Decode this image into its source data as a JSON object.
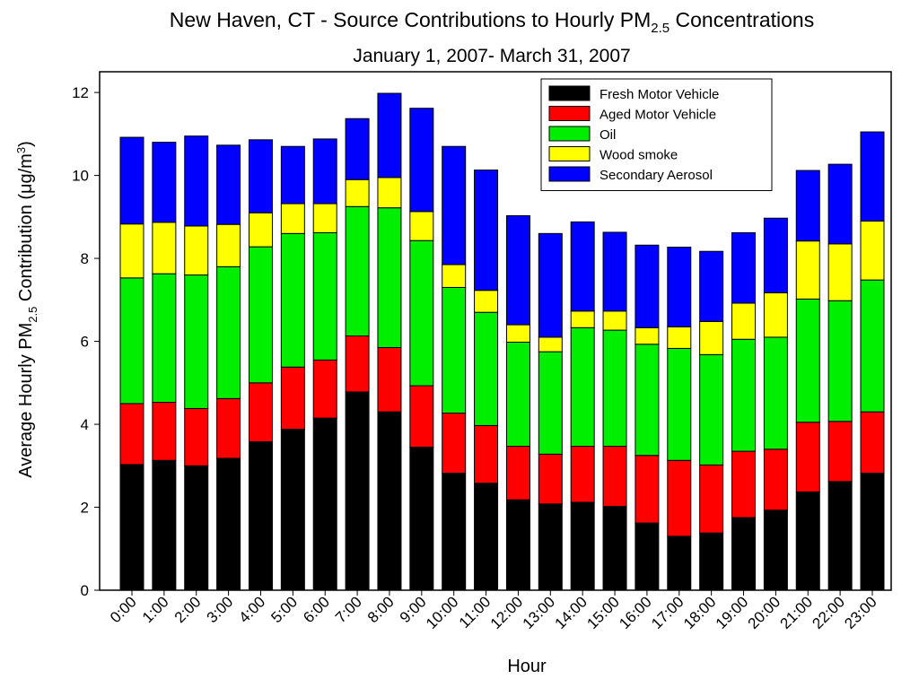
{
  "chart_data": {
    "type": "stacked_bar",
    "title": [
      "New Haven, CT - Source Contributions to Hourly PM",
      "2.5",
      " Concentrations"
    ],
    "subtitle": "January 1, 2007- March 31, 2007",
    "x_label": "Hour",
    "y_label": [
      "Average Hourly PM",
      "2.5",
      " Contribution (μg/m",
      "3",
      ")"
    ],
    "categories": [
      "0:00",
      "1:00",
      "2:00",
      "3:00",
      "4:00",
      "5:00",
      "6:00",
      "7:00",
      "8:00",
      "9:00",
      "10:00",
      "11:00",
      "12:00",
      "13:00",
      "14:00",
      "15:00",
      "16:00",
      "17:00",
      "18:00",
      "19:00",
      "20:00",
      "21:00",
      "22:00",
      "23:00"
    ],
    "series": [
      {
        "name": "Fresh Motor Vehicle",
        "color": "#000000",
        "values": [
          3.03,
          3.13,
          3.0,
          3.18,
          3.58,
          3.88,
          4.15,
          4.78,
          4.3,
          3.45,
          2.82,
          2.58,
          2.18,
          2.08,
          2.12,
          2.02,
          1.62,
          1.3,
          1.38,
          1.75,
          1.93,
          2.37,
          2.62,
          2.82
        ]
      },
      {
        "name": "Aged Motor Vehicle",
        "color": "#ff0000",
        "values": [
          1.47,
          1.4,
          1.38,
          1.44,
          1.42,
          1.5,
          1.4,
          1.35,
          1.55,
          1.48,
          1.45,
          1.39,
          1.29,
          1.2,
          1.35,
          1.45,
          1.63,
          1.83,
          1.64,
          1.6,
          1.47,
          1.68,
          1.45,
          1.48
        ]
      },
      {
        "name": "Oil",
        "color": "#00ee00",
        "values": [
          3.03,
          3.1,
          3.22,
          3.18,
          3.28,
          3.22,
          3.07,
          3.12,
          3.37,
          3.5,
          3.03,
          2.73,
          2.51,
          2.47,
          2.86,
          2.8,
          2.68,
          2.7,
          2.66,
          2.7,
          2.7,
          2.97,
          2.91,
          3.18
        ]
      },
      {
        "name": "Wood smoke",
        "color": "#ffff00",
        "values": [
          1.3,
          1.24,
          1.18,
          1.02,
          0.82,
          0.72,
          0.7,
          0.65,
          0.73,
          0.7,
          0.55,
          0.53,
          0.42,
          0.35,
          0.4,
          0.46,
          0.4,
          0.52,
          0.8,
          0.87,
          1.07,
          1.4,
          1.37,
          1.42
        ]
      },
      {
        "name": "Secondary Aerosol",
        "color": "#0000ff",
        "values": [
          2.09,
          1.93,
          2.17,
          1.91,
          1.76,
          1.38,
          1.56,
          1.47,
          2.03,
          2.49,
          2.85,
          2.9,
          2.63,
          2.5,
          2.15,
          1.9,
          1.99,
          1.92,
          1.69,
          1.7,
          1.8,
          1.7,
          1.92,
          2.15
        ]
      }
    ],
    "ylim": [
      0,
      12.5
    ],
    "yticks": [
      0,
      2,
      4,
      6,
      8,
      10,
      12
    ],
    "grid": false,
    "legend": "upper right"
  }
}
